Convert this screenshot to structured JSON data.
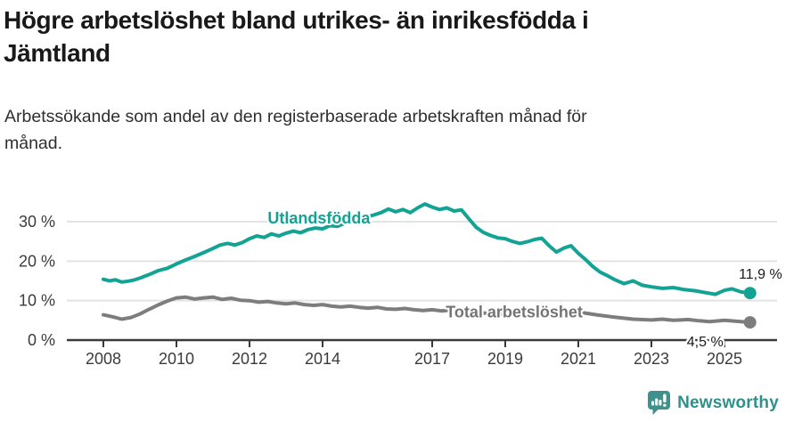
{
  "chart_data": {
    "type": "line",
    "title": "Högre arbetslöshet bland utrikes- än inrikesfödda i\nJämtland",
    "subtitle": "Arbetssökande som andel av den registerbaserade arbetskraften månad för\nmånad.",
    "xlabel": "",
    "ylabel": "",
    "xlim": [
      2008,
      2025.7
    ],
    "ylim": [
      0,
      36
    ],
    "grid": true,
    "legend": "inline-labels",
    "x_ticks": [
      2008,
      2010,
      2012,
      2014,
      2017,
      2019,
      2021,
      2023,
      2025
    ],
    "y_ticks": [
      {
        "value": 0,
        "label": "0 %"
      },
      {
        "value": 10,
        "label": "10 %"
      },
      {
        "value": 20,
        "label": "20 %"
      },
      {
        "value": 30,
        "label": "30 %"
      }
    ],
    "series": [
      {
        "name": "Utlandsfödda",
        "color": "#13a394",
        "end_label": "11,9 %",
        "end_value": 11.9,
        "label_pos": [
          2013.9,
          29.6
        ],
        "points": [
          [
            2008.0,
            15.4
          ],
          [
            2008.17,
            15.0
          ],
          [
            2008.33,
            15.3
          ],
          [
            2008.5,
            14.7
          ],
          [
            2008.67,
            14.9
          ],
          [
            2008.83,
            15.2
          ],
          [
            2009.0,
            15.7
          ],
          [
            2009.25,
            16.6
          ],
          [
            2009.5,
            17.6
          ],
          [
            2009.75,
            18.2
          ],
          [
            2010.0,
            19.3
          ],
          [
            2010.25,
            20.3
          ],
          [
            2010.5,
            21.2
          ],
          [
            2010.75,
            22.2
          ],
          [
            2011.0,
            23.2
          ],
          [
            2011.2,
            24.1
          ],
          [
            2011.4,
            24.5
          ],
          [
            2011.6,
            24.1
          ],
          [
            2011.8,
            24.7
          ],
          [
            2012.0,
            25.7
          ],
          [
            2012.2,
            26.4
          ],
          [
            2012.4,
            26.0
          ],
          [
            2012.6,
            26.9
          ],
          [
            2012.8,
            26.4
          ],
          [
            2013.0,
            27.1
          ],
          [
            2013.2,
            27.6
          ],
          [
            2013.4,
            27.2
          ],
          [
            2013.6,
            28.0
          ],
          [
            2013.8,
            28.4
          ],
          [
            2014.0,
            28.2
          ],
          [
            2014.2,
            29.0
          ],
          [
            2014.4,
            28.8
          ],
          [
            2014.6,
            29.6
          ],
          [
            2014.8,
            30.2
          ],
          [
            2015.0,
            30.6
          ],
          [
            2015.2,
            31.2
          ],
          [
            2015.4,
            31.7
          ],
          [
            2015.6,
            32.3
          ],
          [
            2015.8,
            33.2
          ],
          [
            2016.0,
            32.5
          ],
          [
            2016.2,
            33.1
          ],
          [
            2016.4,
            32.3
          ],
          [
            2016.6,
            33.5
          ],
          [
            2016.8,
            34.5
          ],
          [
            2017.0,
            33.7
          ],
          [
            2017.2,
            33.1
          ],
          [
            2017.4,
            33.5
          ],
          [
            2017.6,
            32.7
          ],
          [
            2017.8,
            33.0
          ],
          [
            2018.0,
            30.8
          ],
          [
            2018.2,
            28.6
          ],
          [
            2018.4,
            27.3
          ],
          [
            2018.6,
            26.5
          ],
          [
            2018.8,
            25.9
          ],
          [
            2019.0,
            25.7
          ],
          [
            2019.2,
            25.0
          ],
          [
            2019.4,
            24.5
          ],
          [
            2019.6,
            24.9
          ],
          [
            2019.8,
            25.5
          ],
          [
            2020.0,
            25.8
          ],
          [
            2020.2,
            23.9
          ],
          [
            2020.4,
            22.3
          ],
          [
            2020.6,
            23.3
          ],
          [
            2020.8,
            23.9
          ],
          [
            2021.0,
            22.0
          ],
          [
            2021.2,
            20.4
          ],
          [
            2021.4,
            18.6
          ],
          [
            2021.6,
            17.2
          ],
          [
            2021.8,
            16.3
          ],
          [
            2022.0,
            15.3
          ],
          [
            2022.25,
            14.3
          ],
          [
            2022.5,
            15.0
          ],
          [
            2022.75,
            13.9
          ],
          [
            2023.0,
            13.5
          ],
          [
            2023.3,
            13.1
          ],
          [
            2023.6,
            13.3
          ],
          [
            2023.9,
            12.8
          ],
          [
            2024.2,
            12.5
          ],
          [
            2024.5,
            12.0
          ],
          [
            2024.75,
            11.6
          ],
          [
            2025.0,
            12.6
          ],
          [
            2025.2,
            13.0
          ],
          [
            2025.45,
            12.2
          ],
          [
            2025.7,
            11.9
          ]
        ]
      },
      {
        "name": "Total arbetslöshet",
        "color": "#7d7d7d",
        "label_color": "#747474",
        "end_label": "4,5 %",
        "end_value": 4.5,
        "label_pos": [
          2017.37,
          5.8
        ],
        "points": [
          [
            2008.0,
            6.4
          ],
          [
            2008.25,
            5.9
          ],
          [
            2008.5,
            5.3
          ],
          [
            2008.75,
            5.7
          ],
          [
            2009.0,
            6.6
          ],
          [
            2009.25,
            7.8
          ],
          [
            2009.5,
            8.9
          ],
          [
            2009.75,
            9.9
          ],
          [
            2010.0,
            10.7
          ],
          [
            2010.25,
            10.9
          ],
          [
            2010.5,
            10.4
          ],
          [
            2010.75,
            10.7
          ],
          [
            2011.0,
            10.9
          ],
          [
            2011.25,
            10.3
          ],
          [
            2011.5,
            10.6
          ],
          [
            2011.75,
            10.1
          ],
          [
            2012.0,
            10.0
          ],
          [
            2012.25,
            9.6
          ],
          [
            2012.5,
            9.8
          ],
          [
            2012.75,
            9.4
          ],
          [
            2013.0,
            9.2
          ],
          [
            2013.25,
            9.4
          ],
          [
            2013.5,
            9.0
          ],
          [
            2013.75,
            8.8
          ],
          [
            2014.0,
            9.0
          ],
          [
            2014.25,
            8.6
          ],
          [
            2014.5,
            8.4
          ],
          [
            2014.75,
            8.6
          ],
          [
            2015.0,
            8.3
          ],
          [
            2015.25,
            8.1
          ],
          [
            2015.5,
            8.3
          ],
          [
            2015.75,
            7.9
          ],
          [
            2016.0,
            7.8
          ],
          [
            2016.25,
            8.0
          ],
          [
            2016.5,
            7.7
          ],
          [
            2016.75,
            7.5
          ],
          [
            2017.0,
            7.7
          ],
          [
            2017.25,
            7.4
          ],
          [
            2017.5,
            7.6
          ],
          [
            2017.75,
            7.3
          ],
          [
            2018.0,
            7.1
          ],
          [
            2018.5,
            6.8
          ],
          [
            2019.0,
            6.5
          ],
          [
            2019.5,
            6.3
          ],
          [
            2020.0,
            6.9
          ],
          [
            2020.3,
            7.8
          ],
          [
            2020.6,
            7.5
          ],
          [
            2021.0,
            7.1
          ],
          [
            2021.5,
            6.4
          ],
          [
            2022.0,
            5.8
          ],
          [
            2022.5,
            5.3
          ],
          [
            2023.0,
            5.1
          ],
          [
            2023.3,
            5.3
          ],
          [
            2023.6,
            5.0
          ],
          [
            2024.0,
            5.2
          ],
          [
            2024.3,
            4.9
          ],
          [
            2024.6,
            4.7
          ],
          [
            2025.0,
            5.0
          ],
          [
            2025.3,
            4.8
          ],
          [
            2025.7,
            4.5
          ]
        ]
      }
    ]
  },
  "footer": {
    "brand": "Newsworthy"
  },
  "colors": {
    "accent_teal": "#13a394",
    "line_gray": "#7d7d7d",
    "logo_teal": "#2f918b",
    "gridline": "#e3e3e3",
    "axis": "#3a3a3a"
  }
}
